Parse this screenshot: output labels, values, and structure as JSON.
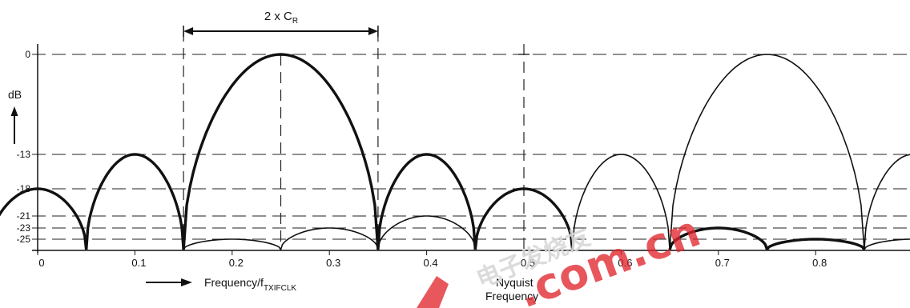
{
  "colors": {
    "ink": "#111111",
    "watermark": "#e0242a",
    "watermark_light": "#d8d8d8"
  },
  "chart_data": {
    "type": "line",
    "title": "",
    "xlabel": "Frequency/f",
    "xlabel_sub": "TXIFCLK",
    "ylabel": "dB",
    "xlim": [
      0,
      0.885
    ],
    "yticks": [
      "0",
      "-13",
      "-18",
      "-21",
      "-23",
      "-25"
    ],
    "ytick_values": [
      0,
      -13,
      -18,
      -21,
      -23,
      -25
    ],
    "xticks": [
      "0",
      "0.1",
      "0.2",
      "0.3",
      "0.4",
      "0.5",
      "0.6",
      "0.7",
      "0.8"
    ],
    "xtick_values": [
      0,
      0.1,
      0.2,
      0.3,
      0.4,
      0.5,
      0.6,
      0.7,
      0.8
    ],
    "bandwidth_label": "2 x C",
    "bandwidth_sub": "R",
    "bandwidth_range": [
      0.15,
      0.35
    ],
    "nyquist_label": [
      "Nyquist",
      "Frequency"
    ],
    "nyquist_x": 0.5,
    "series": [
      {
        "style": "bold",
        "lobes": [
          {
            "x0": -0.05,
            "x1": 0.05,
            "peak": -18
          },
          {
            "x0": 0.05,
            "x1": 0.15,
            "peak": -13
          },
          {
            "x0": 0.15,
            "x1": 0.35,
            "peak": 0
          },
          {
            "x0": 0.35,
            "x1": 0.45,
            "peak": -13
          },
          {
            "x0": 0.45,
            "x1": 0.55,
            "peak": -18
          },
          {
            "x0": 0.65,
            "x1": 0.75,
            "peak": -23
          },
          {
            "x0": 0.75,
            "x1": 0.85,
            "peak": -25
          }
        ]
      },
      {
        "style": "thin",
        "lobes": [
          {
            "x0": 0.15,
            "x1": 0.25,
            "peak": -25
          },
          {
            "x0": 0.25,
            "x1": 0.35,
            "peak": -23
          },
          {
            "x0": 0.35,
            "x1": 0.45,
            "peak": -21
          },
          {
            "x0": 0.55,
            "x1": 0.65,
            "peak": -13
          },
          {
            "x0": 0.65,
            "x1": 0.85,
            "peak": 0
          },
          {
            "x0": 0.85,
            "x1": 0.95,
            "peak": -13
          },
          {
            "x0": 0.85,
            "x1": 0.95,
            "peak": -25
          }
        ]
      }
    ]
  }
}
